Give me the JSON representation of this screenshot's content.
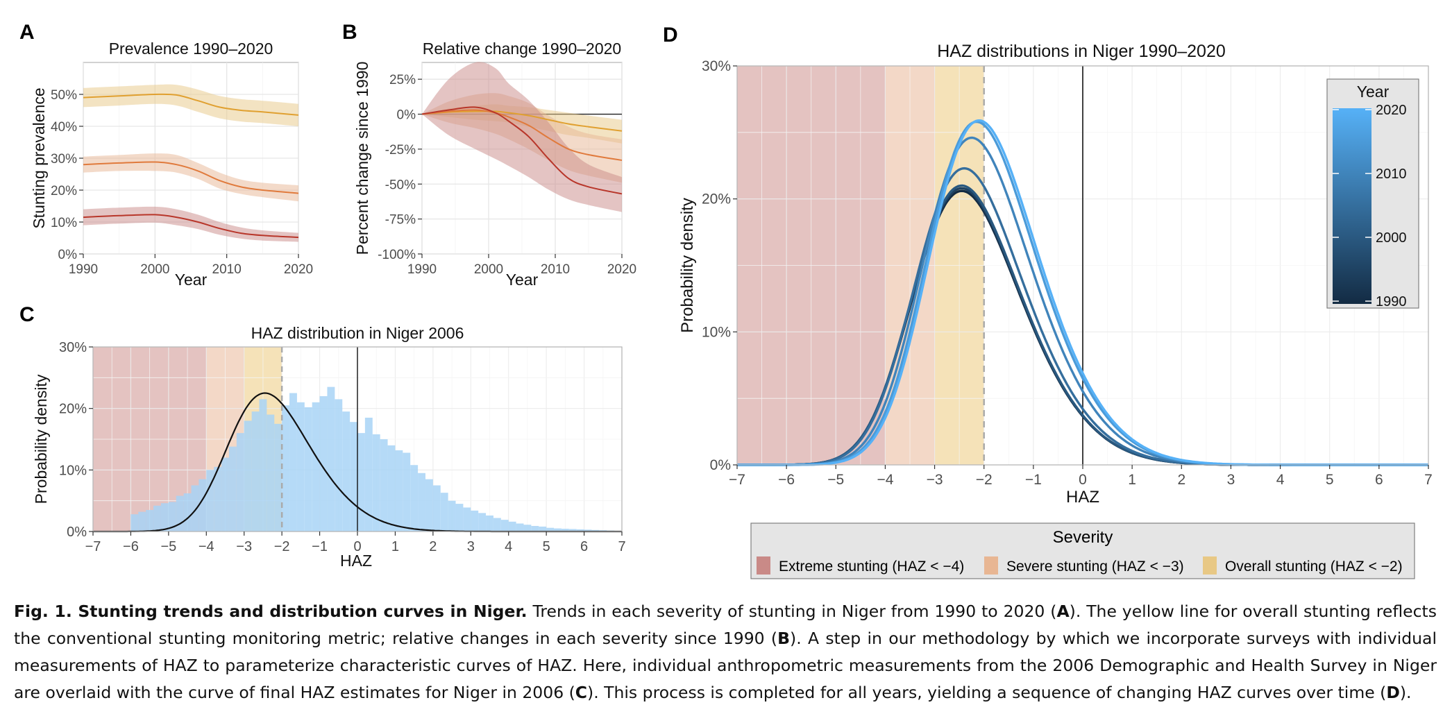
{
  "colors": {
    "extreme": "#c98a87",
    "severe": "#e8b693",
    "overall": "#e8c885",
    "extreme_band": "#e4c3c1",
    "severe_band": "#f3d8c7",
    "overall_band": "#f5e2b8",
    "hist": "#a8d4f6",
    "line_overall": "#e0a030",
    "line_severe": "#e07a3c",
    "line_extreme": "#b8362a",
    "year_1990": "#132b43",
    "year_2020": "#56b1f7",
    "legend_bg": "#e5e5e5"
  },
  "figure": {
    "caption_lead": "Fig. 1. Stunting trends and distribution curves in Niger.",
    "caption_a": " Trends in each severity of stunting in Niger from 1990 to 2020 (",
    "caption_b": "). The yellow line for overall stunting reflects the conventional stunting monitoring metric; relative changes in each severity since 1990 (",
    "caption_c": "). A step in our methodology by which we incorporate surveys with individual measurements of HAZ to parameterize characteristic curves of HAZ. Here, individual anthropometric measurements from the 2006 Demographic and Health Survey in Niger are overlaid with the curve of final HAZ estimates for Niger in 2006 (",
    "caption_d": "). This process is completed for all years, yielding a sequence of changing HAZ curves over time (",
    "caption_end": ").",
    "ref_a": "A",
    "ref_b": "B",
    "ref_c": "C",
    "ref_d": "D"
  },
  "chart_data": [
    {
      "panel": "A",
      "type": "line",
      "title": "Prevalence 1990–2020",
      "xlabel": "Year",
      "ylabel": "Stunting prevalence",
      "xlim": [
        1990,
        2020
      ],
      "ylim": [
        0,
        60
      ],
      "x_ticks": [
        1990,
        2000,
        2010,
        2020
      ],
      "y_ticks": [
        "0%",
        "10%",
        "20%",
        "30%",
        "40%",
        "50%"
      ],
      "x": [
        1990,
        1995,
        2000,
        2003,
        2006,
        2009,
        2012,
        2015,
        2020
      ],
      "series": [
        {
          "key": "overall",
          "values": [
            49,
            49.5,
            50,
            49.8,
            48,
            46,
            45,
            44.5,
            43.5
          ],
          "lower": [
            46,
            46.5,
            47,
            46.5,
            44.5,
            42.5,
            41.5,
            41,
            40
          ],
          "upper": [
            52,
            52.5,
            53,
            53,
            51.5,
            49.5,
            48.5,
            48,
            47
          ]
        },
        {
          "key": "severe",
          "values": [
            28,
            28.5,
            28.8,
            28,
            26,
            23,
            21,
            20,
            19
          ],
          "lower": [
            25.5,
            26,
            26,
            25.5,
            23.5,
            20.5,
            18.8,
            17.8,
            16.5
          ],
          "upper": [
            30.5,
            31,
            31.5,
            31,
            28.5,
            25.5,
            23.3,
            22.3,
            21.5
          ]
        },
        {
          "key": "extreme",
          "values": [
            11.5,
            12,
            12.3,
            11.5,
            10,
            8,
            6.5,
            5.8,
            5.2
          ],
          "lower": [
            9,
            9.5,
            9.8,
            9,
            7.8,
            6,
            4.8,
            4.2,
            3.8
          ],
          "upper": [
            14,
            14.5,
            14.8,
            14,
            12.3,
            10,
            8.3,
            7.4,
            6.6
          ]
        }
      ]
    },
    {
      "panel": "B",
      "type": "line",
      "title": "Relative change 1990–2020",
      "xlabel": "Year",
      "ylabel": "Percent change since 1990",
      "xlim": [
        1990,
        2020
      ],
      "ylim": [
        -100,
        37
      ],
      "x_ticks": [
        1990,
        2000,
        2010,
        2020
      ],
      "y_ticks": [
        "25%",
        "0%",
        "-25%",
        "-50%",
        "-75%",
        "-100%"
      ],
      "x": [
        1990,
        1994,
        1998,
        2001,
        2003,
        2006,
        2009,
        2012,
        2015,
        2020
      ],
      "series": [
        {
          "key": "overall",
          "values": [
            0,
            1.5,
            2,
            2,
            1,
            -1,
            -4,
            -7,
            -9,
            -12
          ],
          "lower": [
            0,
            -2,
            -4,
            -5,
            -6,
            -9,
            -12,
            -15,
            -17,
            -21
          ],
          "upper": [
            0,
            4,
            6,
            7,
            6,
            5,
            3,
            1,
            -1,
            -4
          ]
        },
        {
          "key": "severe",
          "values": [
            0,
            2,
            3,
            1,
            -2,
            -8,
            -17,
            -25,
            -29,
            -33
          ],
          "lower": [
            0,
            -6,
            -10,
            -14,
            -18,
            -25,
            -33,
            -40,
            -44,
            -49
          ],
          "upper": [
            0,
            9,
            14,
            15,
            13,
            8,
            -1,
            -9,
            -14,
            -18
          ]
        },
        {
          "key": "extreme",
          "values": [
            0,
            3,
            5,
            1,
            -5,
            -16,
            -32,
            -46,
            -52,
            -57
          ],
          "lower": [
            0,
            -15,
            -25,
            -32,
            -37,
            -45,
            -54,
            -61,
            -65,
            -70
          ],
          "upper": [
            0,
            25,
            37,
            33,
            22,
            10,
            -6,
            -24,
            -36,
            -45
          ]
        }
      ]
    },
    {
      "panel": "C",
      "type": "bar",
      "title": "HAZ distribution in Niger 2006",
      "xlabel": "HAZ",
      "ylabel": "Probability density",
      "xlim": [
        -7,
        7
      ],
      "ylim": [
        0,
        30
      ],
      "x_ticks": [
        "−7",
        "−6",
        "−5",
        "−4",
        "−3",
        "−2",
        "−1",
        "0",
        "1",
        "2",
        "3",
        "4",
        "5",
        "6",
        "7"
      ],
      "y_ticks": [
        "0%",
        "10%",
        "20%",
        "30%"
      ],
      "bin_width": 0.2,
      "bin_start": -7,
      "hist_values": [
        0,
        0,
        0,
        0,
        0,
        2.8,
        3.2,
        3.5,
        4.2,
        4.6,
        4.8,
        5.8,
        6.2,
        7.5,
        8.5,
        10,
        10.5,
        12,
        13.8,
        16,
        18,
        19.5,
        21.5,
        19,
        17.5,
        20.5,
        22.5,
        21,
        20.2,
        21,
        22,
        23.5,
        21.5,
        19.5,
        17.8,
        16,
        18.5,
        15.8,
        15,
        14,
        13.2,
        12.8,
        10.8,
        9.5,
        8.5,
        7.5,
        6.3,
        5,
        4.5,
        3.9,
        3.4,
        3,
        2.6,
        2.2,
        1.9,
        1.6,
        1.3,
        1.1,
        0.9,
        0.8,
        0.6,
        0.5,
        0.45,
        0.4,
        0.35,
        0.3,
        0.25,
        0.2,
        0.15,
        0.1
      ],
      "curve_peak_density": 22.5
    },
    {
      "panel": "D",
      "type": "line",
      "title": "HAZ distributions in Niger 1990–2020",
      "xlabel": "HAZ",
      "ylabel": "Probability density",
      "xlim": [
        -7,
        7
      ],
      "ylim": [
        0,
        30
      ],
      "x_ticks": [
        "−7",
        "−6",
        "−5",
        "−4",
        "−3",
        "−2",
        "−1",
        "0",
        "1",
        "2",
        "3",
        "4",
        "5",
        "6",
        "7"
      ],
      "y_ticks": [
        "0%",
        "10%",
        "20%",
        "30%"
      ],
      "series": [
        {
          "name": "1990",
          "mode": -2.45,
          "peak": 20.6
        },
        {
          "name": "1995",
          "mode": -2.45,
          "peak": 20.8
        },
        {
          "name": "2000",
          "mode": -2.45,
          "peak": 21.0
        },
        {
          "name": "2005",
          "mode": -2.4,
          "peak": 22.3
        },
        {
          "name": "2010",
          "mode": -2.25,
          "peak": 24.6
        },
        {
          "name": "2015",
          "mode": -2.15,
          "peak": 25.8
        },
        {
          "name": "2020",
          "mode": -2.1,
          "peak": 25.9
        }
      ],
      "legend_title": "Year",
      "legend_ticks": [
        "2020",
        "2010",
        "2000",
        "1990"
      ],
      "legend_position": "top-right"
    }
  ],
  "severity_legend": {
    "title": "Severity",
    "items": [
      {
        "key": "extreme",
        "label": "Extreme stunting (HAZ < −4)"
      },
      {
        "key": "severe",
        "label": "Severe stunting (HAZ < −3)"
      },
      {
        "key": "overall",
        "label": "Overall stunting (HAZ < −2)"
      }
    ]
  }
}
